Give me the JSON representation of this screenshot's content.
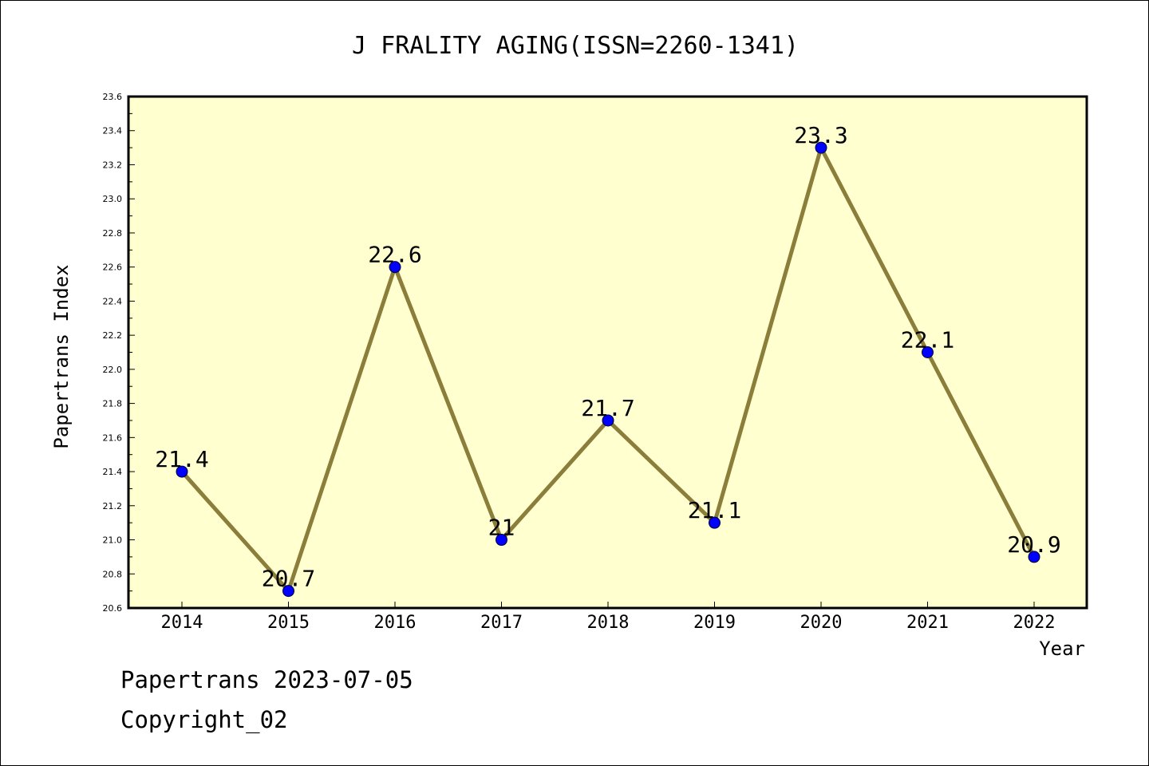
{
  "chart_data": {
    "type": "line",
    "title": "J FRALITY AGING(ISSN=2260-1341)",
    "xlabel": "Year",
    "ylabel": "Papertrans Index",
    "categories": [
      "2014",
      "2015",
      "2016",
      "2017",
      "2018",
      "2019",
      "2020",
      "2021",
      "2022"
    ],
    "series": [
      {
        "values": [
          21.4,
          20.7,
          22.6,
          21.0,
          21.7,
          21.1,
          23.3,
          22.1,
          20.9
        ],
        "point_labels": [
          "21.4",
          "20.7",
          "22.6",
          "21",
          "21.7",
          "21.1",
          "23.3",
          "22.1",
          "20.9"
        ],
        "line_color": "#8b7d3a",
        "marker_color": "#0000ff"
      }
    ],
    "ylim": [
      20.6,
      23.6
    ],
    "yticks": [
      "20.6",
      "20.8",
      "21.0",
      "21.2",
      "21.4",
      "21.6",
      "21.8",
      "22.0",
      "22.2",
      "22.4",
      "22.6",
      "22.8",
      "23.0",
      "23.2",
      "23.4",
      "23.6"
    ],
    "plot_background": "#ffffd0",
    "grid": false
  },
  "footer": {
    "line1": "Papertrans 2023-07-05",
    "line2": "Copyright_02"
  }
}
